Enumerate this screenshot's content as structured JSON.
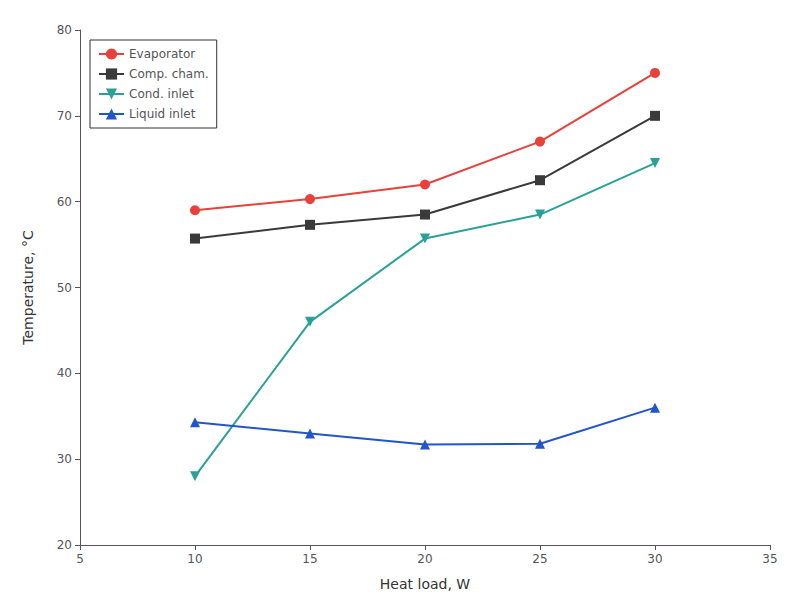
{
  "chart_data": {
    "type": "line",
    "x_label": "Heat load, W",
    "y_label": "Temperature, °C",
    "x": [
      10,
      15,
      20,
      25,
      30
    ],
    "series": [
      {
        "name": "Evaporator",
        "color": "#e8413a",
        "marker": "circle",
        "values": [
          59,
          60.3,
          62,
          67,
          75
        ]
      },
      {
        "name": "Comp. cham.",
        "color": "#3a3a3a",
        "marker": "square",
        "values": [
          55.7,
          57.3,
          58.5,
          62.5,
          70
        ]
      },
      {
        "name": "Cond. inlet",
        "color": "#2aa198",
        "marker": "triangle_down",
        "values": [
          28,
          46,
          55.7,
          58.5,
          64.5
        ]
      },
      {
        "name": "Liquid inlet",
        "color": "#2255cc",
        "marker": "triangle_up",
        "values": [
          34.3,
          33,
          31.7,
          31.8,
          36
        ]
      }
    ],
    "xlim": [
      5,
      35
    ],
    "ylim": [
      20,
      80
    ],
    "xticks": [
      5,
      10,
      15,
      20,
      25,
      30,
      35
    ],
    "yticks": [
      20,
      30,
      40,
      50,
      60,
      70,
      80
    ],
    "grid": false,
    "legend": "upper left"
  }
}
